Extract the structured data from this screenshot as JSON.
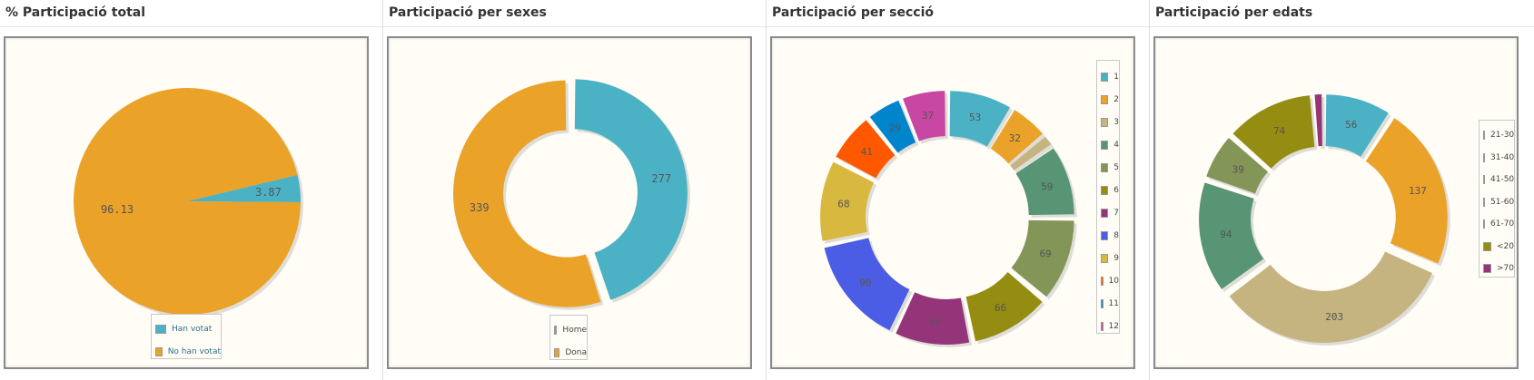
{
  "panels": [
    {
      "title": "% Participació total"
    },
    {
      "title": "Participació per sexes"
    },
    {
      "title": "Participació per secció"
    },
    {
      "title": "Participació per edats"
    }
  ],
  "chart_data": [
    {
      "type": "pie",
      "title": "% Participació total",
      "categories": [
        "Han votat",
        "No han votat"
      ],
      "values": [
        3.87,
        96.13
      ],
      "colors": [
        "#4bb2c5",
        "#eaa228"
      ],
      "legend": "bottom"
    },
    {
      "type": "pie",
      "title": "Participació per sexes",
      "categories": [
        "Home",
        "Dona"
      ],
      "values": [
        277,
        339
      ],
      "colors": [
        "#4bb2c5",
        "#eaa228"
      ],
      "legend": "bottom",
      "donut": true
    },
    {
      "type": "pie",
      "title": "Participació per secció",
      "categories": [
        "1",
        "2",
        "3",
        "4",
        "5",
        "6",
        "7",
        "8",
        "9",
        "10",
        "11",
        "12"
      ],
      "values": [
        53,
        32,
        10,
        59,
        69,
        66,
        63,
        90,
        68,
        41,
        29,
        37
      ],
      "labels": [
        "53",
        "32",
        "",
        "59",
        "69",
        "66",
        "63",
        "90",
        "68",
        "41",
        "29",
        "37"
      ],
      "colors": [
        "#4bb2c5",
        "#eaa228",
        "#c5b47f",
        "#579575",
        "#839557",
        "#958c12",
        "#953579",
        "#4b5de4",
        "#d8b83f",
        "#ff5800",
        "#0085cc",
        "#c747a3"
      ],
      "legend": "right",
      "donut": true
    },
    {
      "type": "pie",
      "title": "Participació per edats",
      "categories": [
        "21-30",
        "31-40",
        "41-50",
        "51-60",
        "61-70",
        "<20",
        ">70"
      ],
      "values": [
        56,
        137,
        203,
        94,
        39,
        74,
        8
      ],
      "labels": [
        "56",
        "137",
        "203",
        "94",
        "39",
        "74",
        ""
      ],
      "colors": [
        "#4bb2c5",
        "#eaa228",
        "#c5b47f",
        "#579575",
        "#839557",
        "#958c12",
        "#953579"
      ],
      "legend": "right",
      "donut": true
    }
  ]
}
